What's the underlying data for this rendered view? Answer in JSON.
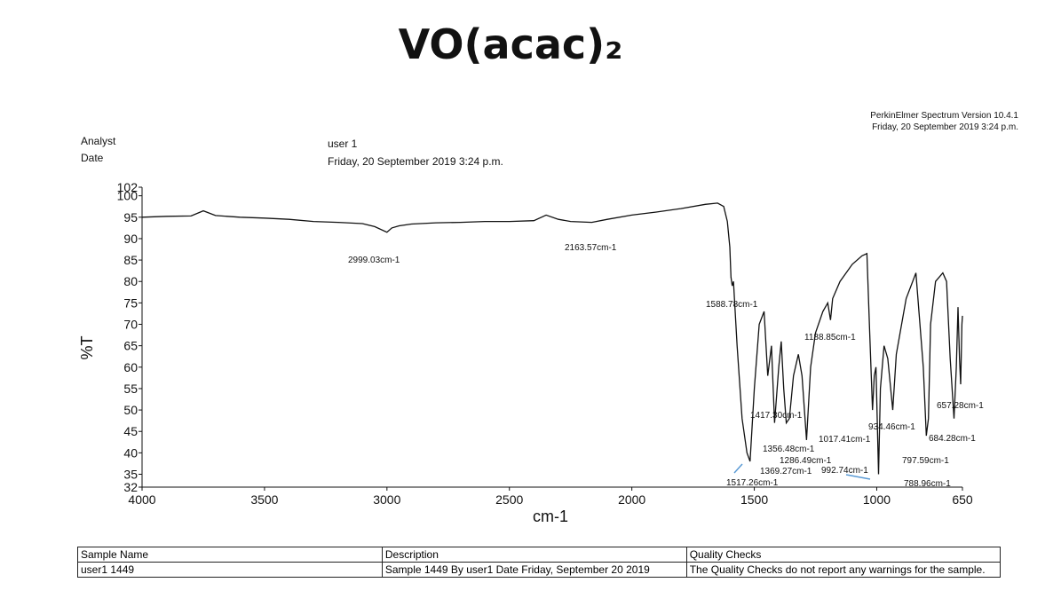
{
  "chart_data": {
    "type": "line",
    "title": "VO(acac)₂",
    "software": "PerkinElmer Spectrum Version 10.4.1",
    "print_date": "Friday, 20 September 2019 3:24 p.m.",
    "analyst_label": "Analyst",
    "date_label": "Date",
    "analyst": "user 1",
    "date": "Friday, 20 September 2019 3:24 p.m.",
    "xlabel": "cm-1",
    "ylabel": "%T",
    "xlim": [
      4000,
      650
    ],
    "ylim": [
      32,
      102
    ],
    "xticks": [
      4000,
      3500,
      3000,
      2500,
      2000,
      1500,
      1000,
      650
    ],
    "yticks": [
      32,
      35,
      40,
      45,
      50,
      55,
      60,
      65,
      70,
      75,
      80,
      85,
      90,
      95,
      100,
      102
    ],
    "x": [
      4000,
      3900,
      3800,
      3750,
      3700,
      3600,
      3500,
      3400,
      3300,
      3200,
      3100,
      3050,
      3000,
      2980,
      2950,
      2900,
      2800,
      2700,
      2600,
      2500,
      2400,
      2350,
      2300,
      2250,
      2163.57,
      2100,
      2000,
      1900,
      1800,
      1700,
      1650,
      1625,
      1610,
      1600,
      1595,
      1590,
      1585,
      1570,
      1550,
      1530,
      1517.26,
      1500,
      1480,
      1460,
      1445,
      1430,
      1417.3,
      1400,
      1390,
      1380,
      1369.27,
      1356.48,
      1340,
      1320,
      1305,
      1286.49,
      1270,
      1250,
      1220,
      1200,
      1188.85,
      1180,
      1150,
      1100,
      1060,
      1040,
      1030,
      1017.41,
      1010,
      1003,
      992.74,
      985,
      970,
      955,
      934.46,
      920,
      880,
      840,
      810,
      797.59,
      788.96,
      780,
      760,
      730,
      715,
      700,
      684.28,
      675,
      668,
      662,
      657.28,
      652,
      650
    ],
    "series": [
      {
        "name": "VO(acac)₂",
        "color": "#111111",
        "values": [
          95,
          95.2,
          95.3,
          96.5,
          95.4,
          95,
          94.8,
          94.5,
          94,
          93.8,
          93.5,
          92.8,
          91.5,
          92.5,
          93,
          93.4,
          93.7,
          93.8,
          94,
          94,
          94.2,
          95.5,
          94.5,
          94,
          93.8,
          94.5,
          95.5,
          96.2,
          97,
          98,
          98.3,
          97.5,
          94,
          88,
          81,
          79,
          80,
          65,
          48,
          40,
          38,
          55,
          70,
          73,
          58,
          65,
          47,
          60,
          66,
          55,
          47,
          48,
          58,
          63,
          58,
          43,
          60,
          68,
          73,
          75,
          71,
          76,
          80,
          84,
          86,
          86.5,
          70,
          50,
          58,
          60,
          35,
          55,
          65,
          62,
          50,
          63,
          76,
          82,
          60,
          44,
          48,
          70,
          80,
          82,
          80,
          62,
          48,
          60,
          74,
          62,
          56,
          70,
          72
        ]
      }
    ],
    "annotations": [
      "2999.03cm-1",
      "2163.57cm-1",
      "1588.78cm-1",
      "1188.85cm-1",
      "1417.30cm-1",
      "934.46cm-1",
      "657.28cm-1",
      "1017.41cm-1",
      "684.28cm-1",
      "1356.48cm-1",
      "1286.49cm-1",
      "797.59cm-1",
      "1369.27cm-1",
      "992.74cm-1",
      "1517.26cm-1",
      "788.96cm-1"
    ]
  },
  "table": {
    "header": [
      "Sample Name",
      "Description",
      "Quality Checks"
    ],
    "rows": [
      [
        "user1 1449",
        "Sample 1449 By user1 Date Friday, September 20 2019",
        "The Quality Checks do not report any warnings for the sample."
      ]
    ]
  }
}
